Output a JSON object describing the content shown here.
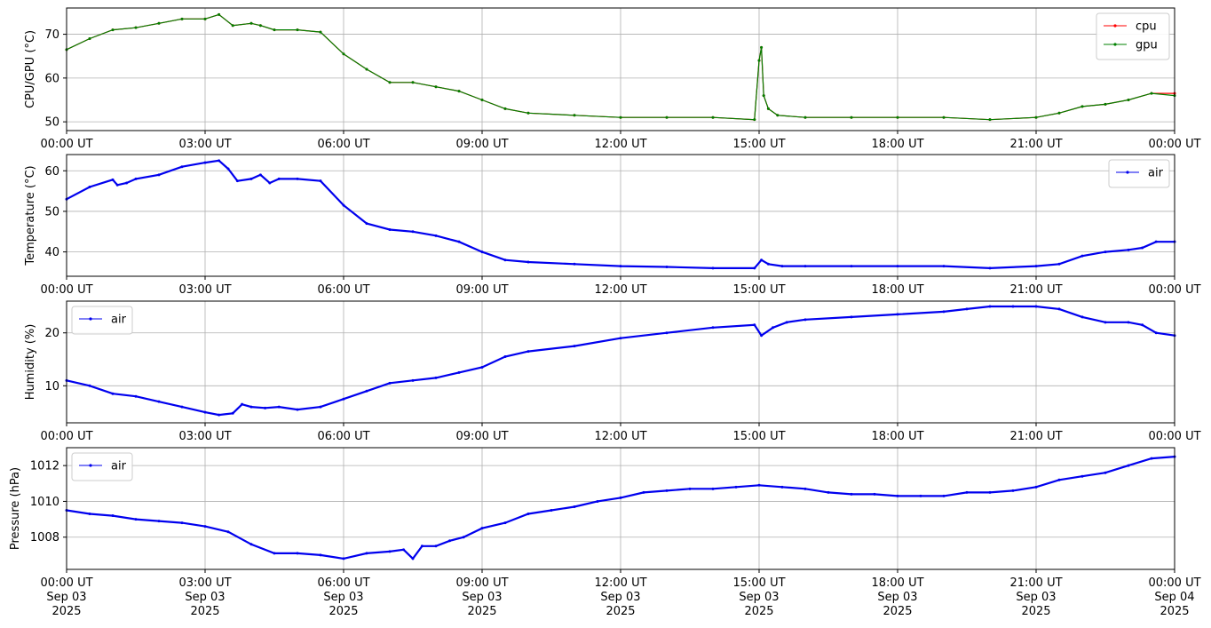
{
  "chart_data": [
    {
      "type": "line",
      "ylabel": "CPU/GPU (°C)",
      "ylim": [
        48,
        76
      ],
      "yticks": [
        50,
        60,
        70
      ],
      "grid": true,
      "legend_placement": "top-right",
      "x_tick_labels": [
        "00:00 UT",
        "03:00 UT",
        "06:00 UT",
        "09:00 UT",
        "12:00 UT",
        "15:00 UT",
        "18:00 UT",
        "21:00 UT",
        "00:00 UT"
      ],
      "x": [
        0,
        0.5,
        1,
        1.5,
        2,
        2.5,
        3,
        3.3,
        3.6,
        4,
        4.2,
        4.5,
        5,
        5.5,
        6,
        6.5,
        7,
        7.5,
        8,
        8.5,
        9,
        9.5,
        10,
        11,
        12,
        13,
        14,
        14.9,
        15.0,
        15.05,
        15.1,
        15.2,
        15.4,
        16,
        17,
        18,
        19,
        20,
        21,
        21.5,
        22,
        22.5,
        23,
        23.5,
        24
      ],
      "series": [
        {
          "name": "cpu",
          "color": "#ff0000",
          "values": [
            66.5,
            69,
            71,
            71.5,
            72.5,
            73.5,
            73.5,
            74.5,
            72,
            72.5,
            72,
            71,
            71,
            70.5,
            65.5,
            62,
            59,
            59,
            58,
            57,
            55,
            53,
            52,
            51.5,
            51,
            51,
            51,
            50.5,
            64,
            67,
            56,
            53,
            51.5,
            51,
            51,
            51,
            51,
            50.5,
            51,
            52,
            53.5,
            54,
            55,
            56.5,
            56.5
          ]
        },
        {
          "name": "gpu",
          "color": "#008000",
          "values": [
            66.5,
            69,
            71,
            71.5,
            72.5,
            73.5,
            73.5,
            74.5,
            72,
            72.5,
            72,
            71,
            71,
            70.5,
            65.5,
            62,
            59,
            59,
            58,
            57,
            55,
            53,
            52,
            51.5,
            51,
            51,
            51,
            50.5,
            64,
            67,
            56,
            53,
            51.5,
            51,
            51,
            51,
            51,
            50.5,
            51,
            52,
            53.5,
            54,
            55,
            56.5,
            56
          ]
        }
      ]
    },
    {
      "type": "line",
      "ylabel": "Temperature (°C)",
      "ylim": [
        34,
        64
      ],
      "yticks": [
        40,
        50,
        60
      ],
      "grid": true,
      "legend_placement": "top-right",
      "x_tick_labels": [
        "00:00 UT",
        "03:00 UT",
        "06:00 UT",
        "09:00 UT",
        "12:00 UT",
        "15:00 UT",
        "18:00 UT",
        "21:00 UT",
        "00:00 UT"
      ],
      "x": [
        0,
        0.5,
        1,
        1.1,
        1.3,
        1.5,
        2,
        2.5,
        3,
        3.3,
        3.5,
        3.7,
        4,
        4.2,
        4.4,
        4.6,
        5,
        5.5,
        6,
        6.5,
        7,
        7.5,
        8,
        8.5,
        9,
        9.5,
        10,
        11,
        12,
        13,
        14,
        14.9,
        15.05,
        15.2,
        15.5,
        16,
        17,
        18,
        19,
        20,
        21,
        21.5,
        22,
        22.5,
        23,
        23.3,
        23.6,
        24
      ],
      "series": [
        {
          "name": "air",
          "color": "#0000ee",
          "values": [
            53,
            56,
            57.8,
            56.5,
            57,
            58,
            59,
            61,
            62,
            62.5,
            60.5,
            57.5,
            58,
            59,
            57,
            58,
            58,
            57.5,
            51.5,
            47,
            45.5,
            45,
            44,
            42.5,
            40,
            38,
            37.5,
            37,
            36.5,
            36.3,
            36,
            36,
            38,
            37,
            36.5,
            36.5,
            36.5,
            36.5,
            36.5,
            36,
            36.5,
            37,
            39,
            40,
            40.5,
            41,
            42.5,
            42.5
          ]
        }
      ]
    },
    {
      "type": "line",
      "ylabel": "Humidity (%)",
      "ylim": [
        3,
        26
      ],
      "yticks": [
        10,
        20
      ],
      "grid": true,
      "legend_placement": "top-left",
      "x_tick_labels": [
        "00:00 UT",
        "03:00 UT",
        "06:00 UT",
        "09:00 UT",
        "12:00 UT",
        "15:00 UT",
        "18:00 UT",
        "21:00 UT",
        "00:00 UT"
      ],
      "x": [
        0,
        0.5,
        1,
        1.5,
        2,
        2.5,
        3,
        3.3,
        3.6,
        3.8,
        4,
        4.3,
        4.6,
        5,
        5.5,
        6,
        6.5,
        7,
        7.5,
        8,
        8.5,
        9,
        9.5,
        10,
        11,
        12,
        13,
        14,
        14.9,
        15.05,
        15.3,
        15.6,
        16,
        17,
        18,
        19,
        19.5,
        20,
        20.5,
        21,
        21.5,
        22,
        22.5,
        23,
        23.3,
        23.6,
        24
      ],
      "series": [
        {
          "name": "air",
          "color": "#0000ee",
          "values": [
            11,
            10,
            8.5,
            8,
            7,
            6,
            5,
            4.5,
            4.8,
            6.5,
            6,
            5.8,
            6,
            5.5,
            6,
            7.5,
            9,
            10.5,
            11,
            11.5,
            12.5,
            13.5,
            15.5,
            16.5,
            17.5,
            19,
            20,
            21,
            21.5,
            19.5,
            21,
            22,
            22.5,
            23,
            23.5,
            24,
            24.5,
            25,
            25,
            25,
            24.5,
            23,
            22,
            22,
            21.5,
            20,
            19.5
          ]
        }
      ]
    },
    {
      "type": "line",
      "ylabel": "Pressure (hPa)",
      "ylim": [
        1006.2,
        1013
      ],
      "yticks": [
        1008,
        1010,
        1012
      ],
      "grid": true,
      "legend_placement": "top-left",
      "x_tick_labels": [
        "00:00 UT",
        "03:00 UT",
        "06:00 UT",
        "09:00 UT",
        "12:00 UT",
        "15:00 UT",
        "18:00 UT",
        "21:00 UT",
        "00:00 UT"
      ],
      "x_tick_sublabels": [
        "Sep 03",
        "Sep 03",
        "Sep 03",
        "Sep 03",
        "Sep 03",
        "Sep 03",
        "Sep 03",
        "Sep 03",
        "Sep 04"
      ],
      "x_tick_years": [
        "2025",
        "2025",
        "2025",
        "2025",
        "2025",
        "2025",
        "2025",
        "2025",
        "2025"
      ],
      "x": [
        0,
        0.5,
        1,
        1.5,
        2,
        2.5,
        3,
        3.5,
        4,
        4.5,
        5,
        5.5,
        6,
        6.5,
        7,
        7.3,
        7.5,
        7.7,
        8,
        8.3,
        8.6,
        9,
        9.5,
        10,
        10.5,
        11,
        11.5,
        12,
        12.5,
        13,
        13.5,
        14,
        14.5,
        15,
        15.5,
        16,
        16.5,
        17,
        17.5,
        18,
        18.5,
        19,
        19.5,
        20,
        20.5,
        21,
        21.5,
        22,
        22.5,
        23,
        23.5,
        24
      ],
      "series": [
        {
          "name": "air",
          "color": "#0000ee",
          "values": [
            1009.5,
            1009.3,
            1009.2,
            1009.0,
            1008.9,
            1008.8,
            1008.6,
            1008.3,
            1007.6,
            1007.1,
            1007.1,
            1007.0,
            1006.8,
            1007.1,
            1007.2,
            1007.3,
            1006.8,
            1007.5,
            1007.5,
            1007.8,
            1008.0,
            1008.5,
            1008.8,
            1009.3,
            1009.5,
            1009.7,
            1010.0,
            1010.2,
            1010.5,
            1010.6,
            1010.7,
            1010.7,
            1010.8,
            1010.9,
            1010.8,
            1010.7,
            1010.5,
            1010.4,
            1010.4,
            1010.3,
            1010.3,
            1010.3,
            1010.5,
            1010.5,
            1010.6,
            1010.8,
            1011.2,
            1011.4,
            1011.6,
            1012.0,
            1012.4,
            1012.5
          ]
        }
      ]
    }
  ]
}
